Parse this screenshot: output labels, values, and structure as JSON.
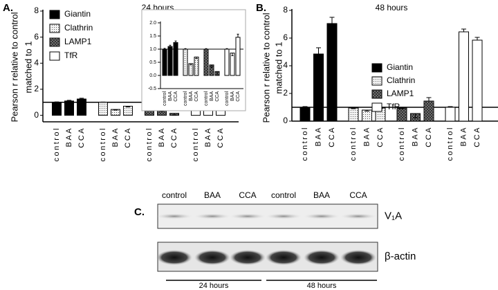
{
  "chart_data": [
    {
      "type": "bar",
      "panel_label": "A.",
      "title": "24 hours",
      "ylabel": [
        "Pearson r relative to control",
        "matched to 1"
      ],
      "categories": [
        "control",
        "BAA",
        "CCA"
      ],
      "series": [
        {
          "name": "Giantin",
          "color": "#000000",
          "values": [
            1.0,
            1.1,
            1.25
          ],
          "errors": [
            0.03,
            0.05,
            0.06
          ]
        },
        {
          "name": "Clathrin",
          "color": "#f2f2f2",
          "pattern": "dots",
          "values": [
            1.0,
            0.45,
            0.7
          ],
          "errors": [
            0.02,
            0.05,
            0.06
          ]
        },
        {
          "name": "LAMP1",
          "color": "#7f7f7f",
          "pattern": "crosshatch",
          "values": [
            1.0,
            0.4,
            0.15
          ],
          "errors": [
            0.02,
            0.1,
            0.15
          ]
        },
        {
          "name": "TfR",
          "color": "#ffffff",
          "values": [
            1.0,
            0.85,
            1.45
          ],
          "errors": [
            0.02,
            0.1,
            0.12
          ]
        }
      ],
      "ylim": [
        -0.5,
        8
      ],
      "yticks": [
        0,
        2,
        4,
        6,
        8
      ],
      "reference_line": 1,
      "legend": "upper left",
      "inset": {
        "ylim": [
          -0.5,
          2.0
        ],
        "yticks": [
          -0.5,
          {
            "value": 0,
            "label": "0.0"
          },
          0.5,
          {
            "value": 1,
            "label": "1.0"
          },
          1.5,
          {
            "value": 2,
            "label": "2.0"
          }
        ]
      }
    },
    {
      "type": "bar",
      "panel_label": "B.",
      "title": "48 hours",
      "ylabel": [
        "Pearson r relative to control",
        "matched to 1"
      ],
      "categories": [
        "control",
        "BAA",
        "CCA"
      ],
      "series": [
        {
          "name": "Giantin",
          "color": "#000000",
          "values": [
            1.0,
            4.85,
            7.05
          ],
          "errors": [
            0.05,
            0.45,
            0.45
          ]
        },
        {
          "name": "Clathrin",
          "color": "#f2f2f2",
          "pattern": "dots",
          "values": [
            0.95,
            0.8,
            0.95
          ],
          "errors": [
            0.05,
            0.08,
            0.05
          ]
        },
        {
          "name": "LAMP1",
          "color": "#7f7f7f",
          "pattern": "crosshatch",
          "values": [
            0.95,
            0.55,
            1.45
          ],
          "errors": [
            0.05,
            0.3,
            0.25
          ]
        },
        {
          "name": "TfR",
          "color": "#ffffff",
          "values": [
            1.0,
            6.45,
            5.85
          ],
          "errors": [
            0.05,
            0.2,
            0.2
          ]
        }
      ],
      "ylim": [
        0,
        8
      ],
      "yticks": [
        0,
        2,
        4,
        6,
        8
      ],
      "reference_line": 1,
      "legend": "center"
    }
  ],
  "blot": {
    "panel_label": "C.",
    "lanes": [
      "control",
      "BAA",
      "CCA",
      "control",
      "BAA",
      "CCA"
    ],
    "rows": [
      "V₁A",
      "β-actin"
    ],
    "groups": [
      "24 hours",
      "48 hours"
    ]
  }
}
